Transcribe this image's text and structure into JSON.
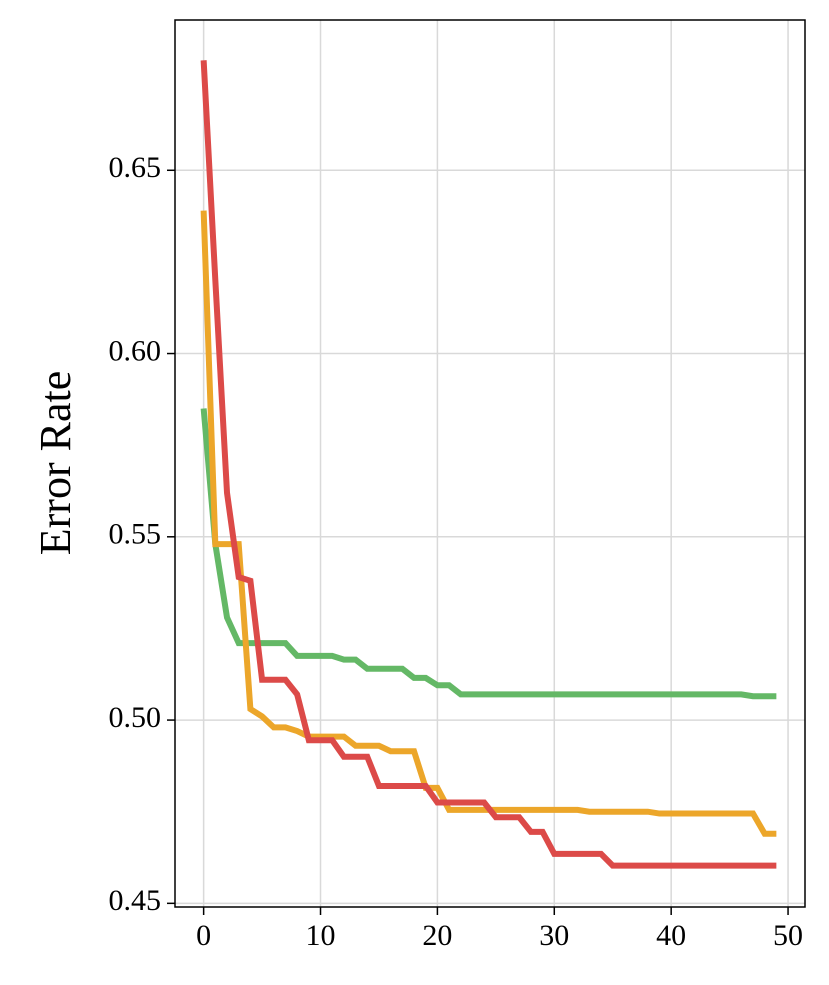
{
  "chart_data": {
    "type": "line",
    "y_label": "Error Rate",
    "x": [
      0,
      1,
      2,
      3,
      4,
      5,
      6,
      7,
      8,
      9,
      10,
      11,
      12,
      13,
      14,
      15,
      16,
      17,
      18,
      19,
      20,
      21,
      22,
      23,
      24,
      25,
      26,
      27,
      28,
      29,
      30,
      31,
      32,
      33,
      34,
      35,
      36,
      37,
      38,
      39,
      40,
      41,
      42,
      43,
      44,
      45,
      46,
      47,
      48,
      49
    ],
    "series": [
      {
        "color": "#64b866",
        "values": [
          0.585,
          0.548,
          0.528,
          0.521,
          0.521,
          0.521,
          0.521,
          0.521,
          0.5175,
          0.5175,
          0.5175,
          0.5175,
          0.5165,
          0.5165,
          0.514,
          0.514,
          0.514,
          0.514,
          0.5115,
          0.5115,
          0.5095,
          0.5095,
          0.507,
          0.507,
          0.507,
          0.507,
          0.507,
          0.507,
          0.507,
          0.507,
          0.507,
          0.507,
          0.507,
          0.507,
          0.507,
          0.507,
          0.507,
          0.507,
          0.507,
          0.507,
          0.507,
          0.507,
          0.507,
          0.507,
          0.507,
          0.507,
          0.507,
          0.5065,
          0.5065,
          0.5065
        ]
      },
      {
        "color": "#eca62a",
        "values": [
          0.639,
          0.548,
          0.548,
          0.548,
          0.503,
          0.501,
          0.498,
          0.498,
          0.497,
          0.4955,
          0.4955,
          0.4955,
          0.4955,
          0.493,
          0.493,
          0.493,
          0.4915,
          0.4915,
          0.4915,
          0.4815,
          0.4815,
          0.4755,
          0.4755,
          0.4755,
          0.4755,
          0.4755,
          0.4755,
          0.4755,
          0.4755,
          0.4755,
          0.4755,
          0.4755,
          0.4755,
          0.475,
          0.475,
          0.475,
          0.475,
          0.475,
          0.475,
          0.4745,
          0.4745,
          0.4745,
          0.4745,
          0.4745,
          0.4745,
          0.4745,
          0.4745,
          0.4745,
          0.469,
          0.469
        ]
      },
      {
        "color": "#dc4a48",
        "values": [
          0.68,
          0.62,
          0.562,
          0.539,
          0.538,
          0.511,
          0.511,
          0.511,
          0.507,
          0.4945,
          0.4945,
          0.4945,
          0.49,
          0.49,
          0.49,
          0.482,
          0.482,
          0.482,
          0.482,
          0.482,
          0.4775,
          0.4775,
          0.4775,
          0.4775,
          0.4775,
          0.4735,
          0.4735,
          0.4735,
          0.4695,
          0.4695,
          0.4635,
          0.4635,
          0.4635,
          0.4635,
          0.4635,
          0.4603,
          0.4603,
          0.4603,
          0.4603,
          0.4603,
          0.4603,
          0.4603,
          0.4603,
          0.4603,
          0.4603,
          0.4603,
          0.4603,
          0.4603,
          0.4603,
          0.4603
        ]
      }
    ],
    "xlim": [
      -2.45,
      51.45
    ],
    "xticks": [
      0,
      10,
      20,
      30,
      40,
      50
    ],
    "ylim": [
      0.449,
      0.691
    ],
    "yticks": [
      0.45,
      {
        "value": 0.5,
        "label": "0.50"
      },
      0.55,
      {
        "value": 0.6,
        "label": "0.60"
      },
      0.65
    ],
    "grid": true
  }
}
